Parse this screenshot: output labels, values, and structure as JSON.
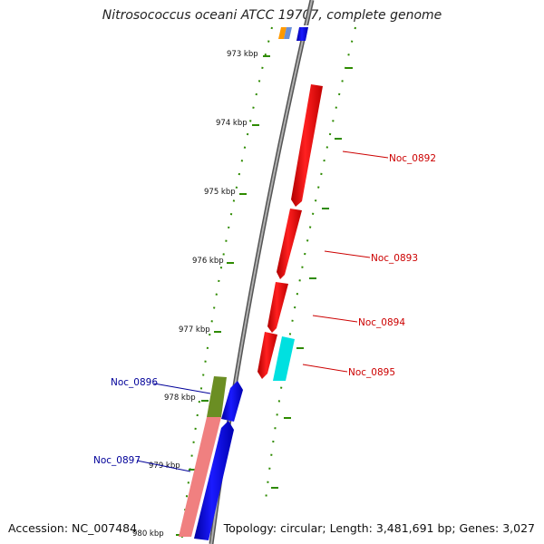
{
  "title": "Nitrosococcus oceani ATCC 19707, complete genome",
  "footer": {
    "accession": "Accession: NC_007484",
    "summary": "Topology: circular; Length: 3,481,691 bp; Genes: 3,027"
  },
  "scale_ticks": [
    {
      "label": "973 kbp"
    },
    {
      "label": "974 kbp"
    },
    {
      "label": "975 kbp"
    },
    {
      "label": "976 kbp"
    },
    {
      "label": "977 kbp"
    },
    {
      "label": "978 kbp"
    },
    {
      "label": "979 kbp"
    },
    {
      "label": "980 kbp"
    }
  ],
  "gene_labels": [
    {
      "name": "Noc_0892",
      "color": "#cc0000"
    },
    {
      "name": "Noc_0893",
      "color": "#cc0000"
    },
    {
      "name": "Noc_0894",
      "color": "#cc0000"
    },
    {
      "name": "Noc_0895",
      "color": "#cc0000"
    },
    {
      "name": "Noc_0896",
      "color": "#000099"
    },
    {
      "name": "Noc_0897",
      "color": "#000099"
    }
  ],
  "colors": {
    "backbone": "#8c8c8c",
    "forward_gene": "#ee0000",
    "reverse_gene": "#0000ee",
    "cyan_gene": "#00dddd",
    "olive_gene": "#6b8e23",
    "pink_gene": "#f08080",
    "tick": "#2e8b00"
  }
}
